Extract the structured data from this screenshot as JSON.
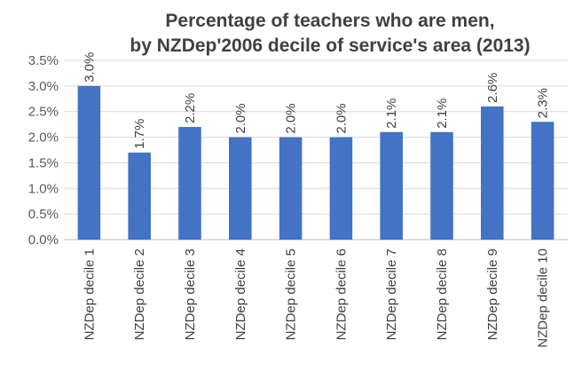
{
  "chart_data": {
    "type": "bar",
    "title_lines": [
      "Percentage of teachers who are men,",
      "by NZDep'2006 decile of service's area (2013)"
    ],
    "categories": [
      "NZDep decile 1",
      "NZDep decile 2",
      "NZDep decile 3",
      "NZDep decile 4",
      "NZDep decile 5",
      "NZDep decile 6",
      "NZDep decile 7",
      "NZDep decile 8",
      "NZDep decile 9",
      "NZDep decile 10"
    ],
    "values": [
      3.0,
      1.7,
      2.2,
      2.0,
      2.0,
      2.0,
      2.1,
      2.1,
      2.6,
      2.3
    ],
    "data_labels": [
      "3.0%",
      "1.7%",
      "2.2%",
      "2.0%",
      "2.0%",
      "2.0%",
      "2.1%",
      "2.1%",
      "2.6%",
      "2.3%"
    ],
    "yticks": [
      0.0,
      0.5,
      1.0,
      1.5,
      2.0,
      2.5,
      3.0,
      3.5
    ],
    "ytick_labels": [
      "0.0%",
      "0.5%",
      "1.0%",
      "1.5%",
      "2.0%",
      "2.5%",
      "3.0%",
      "3.5%"
    ],
    "ylim": [
      0,
      3.5
    ],
    "xlabel": "",
    "ylabel": "",
    "grid": true,
    "legend": false,
    "colors": {
      "bar": "#4472C4",
      "grid": "#d9d9d9",
      "axis": "#bfbfbf"
    }
  }
}
